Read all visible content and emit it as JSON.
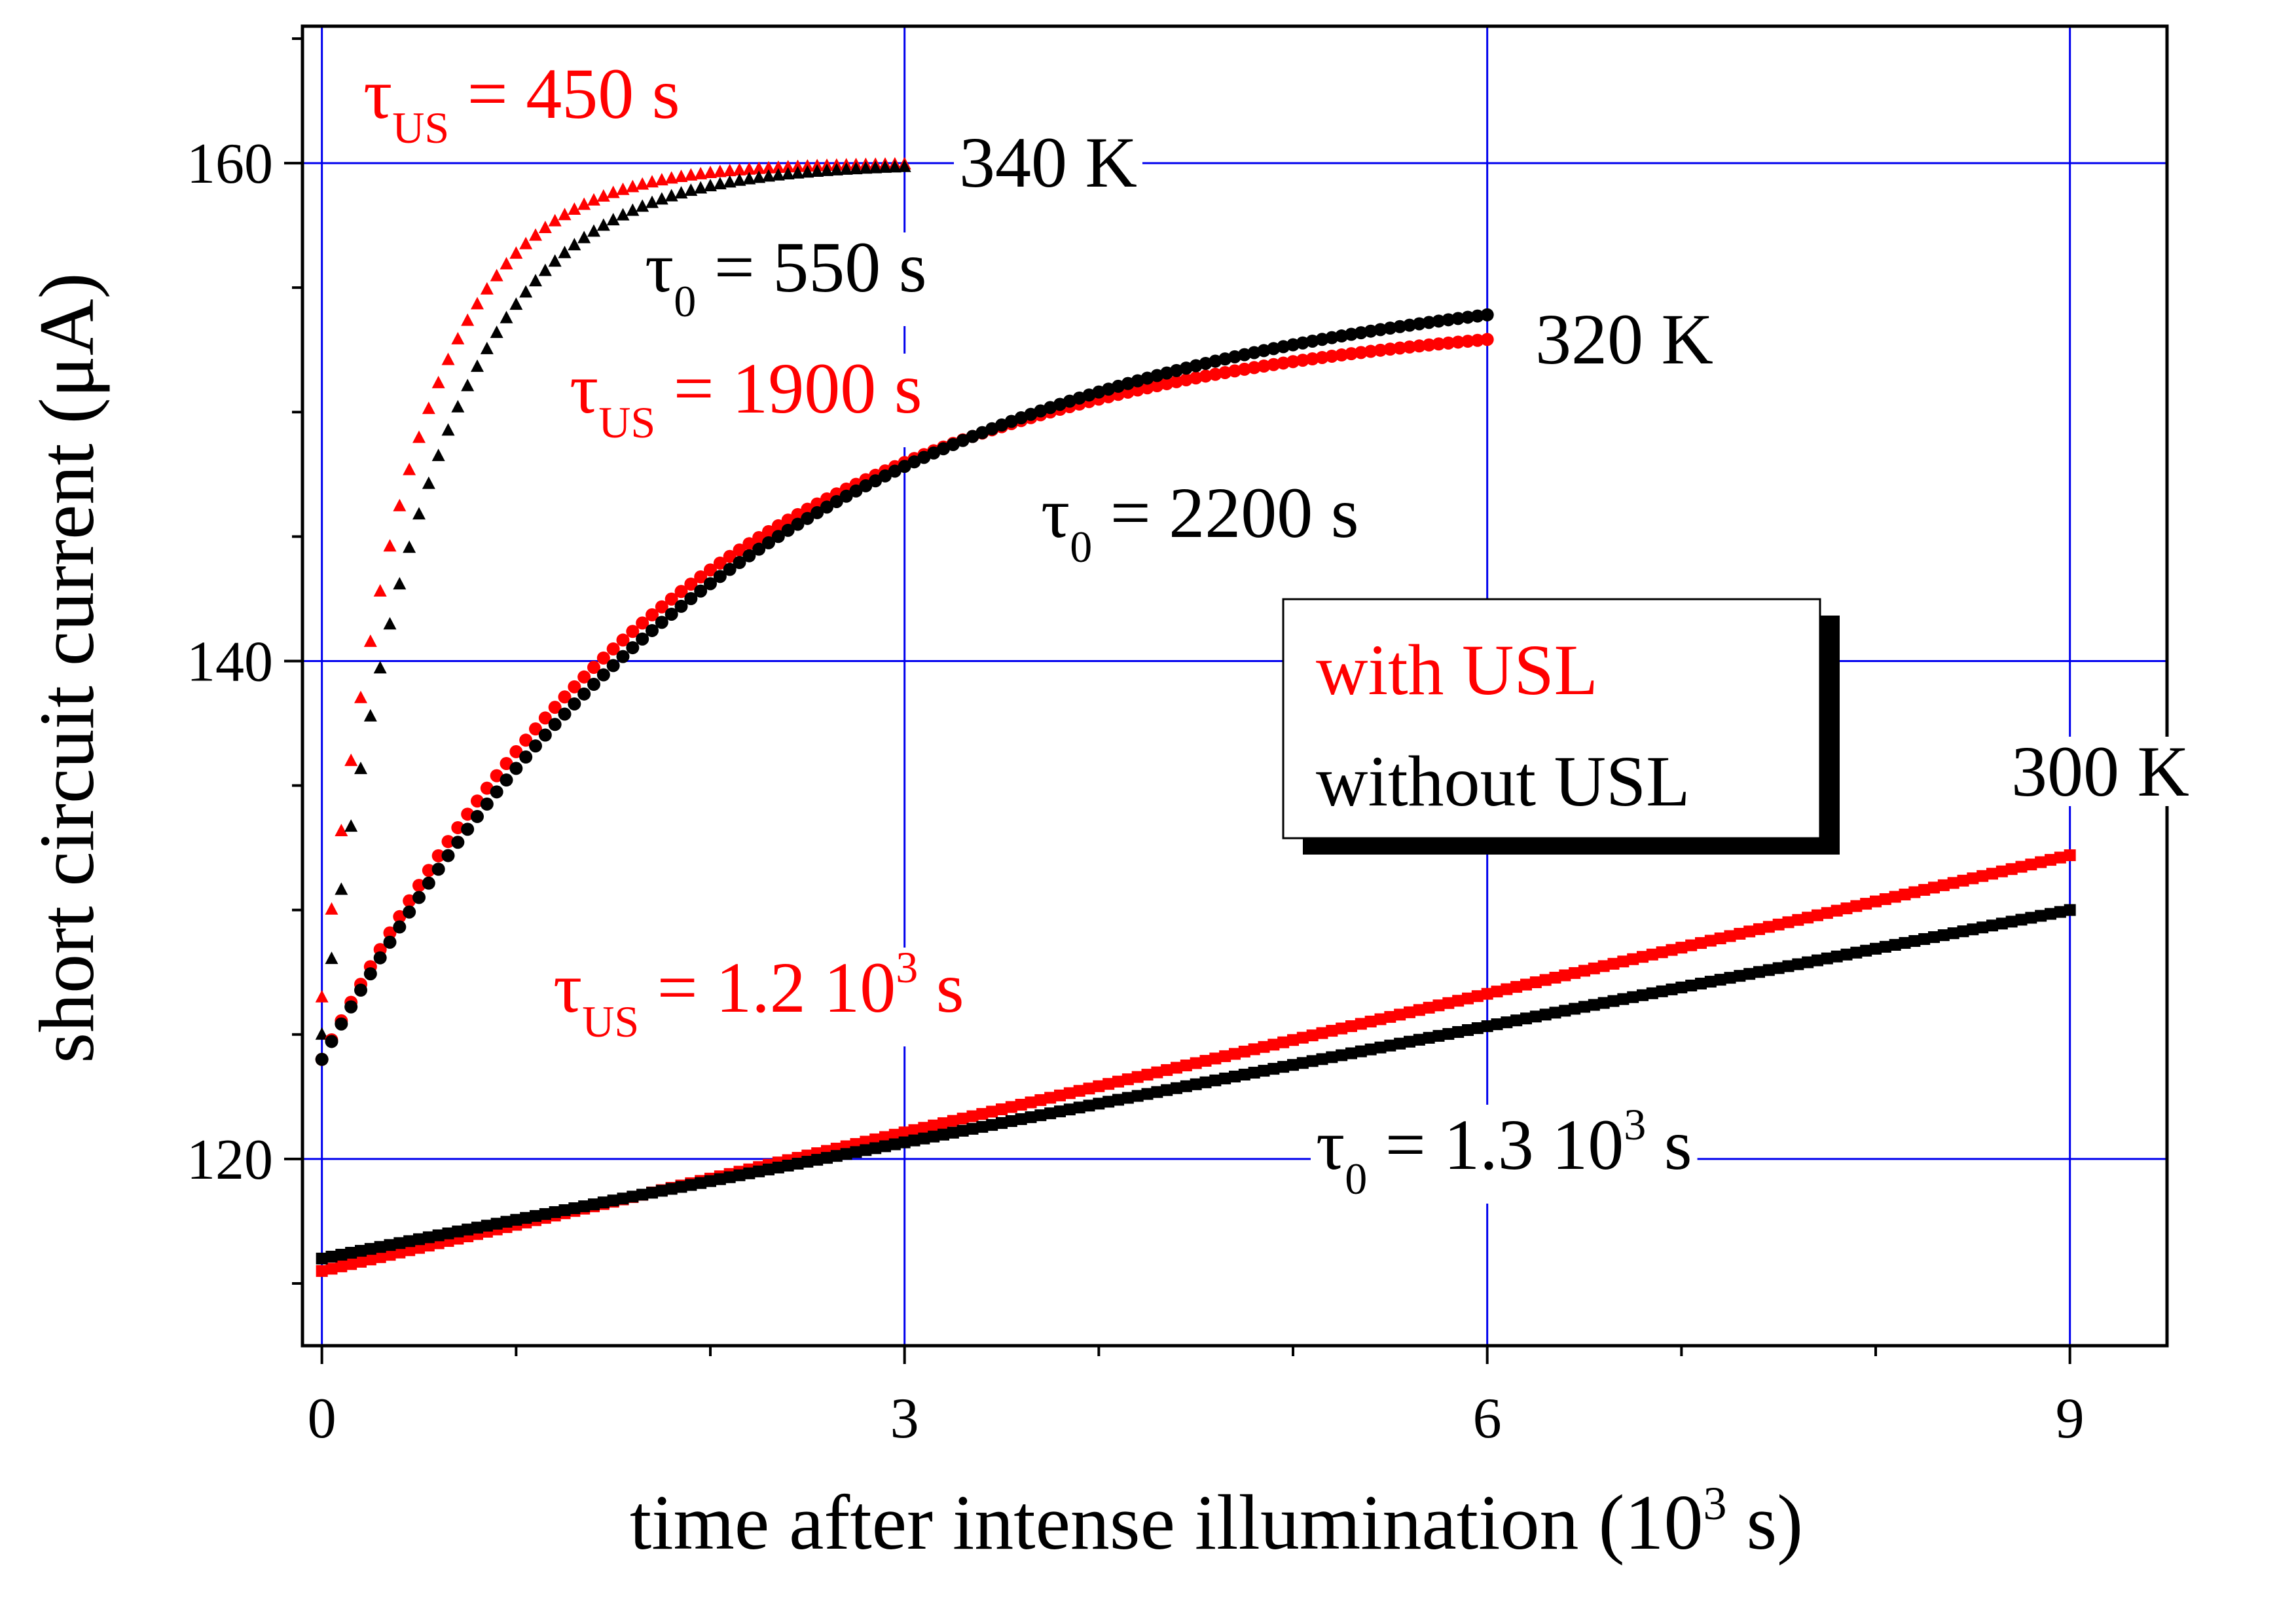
{
  "chart_data": {
    "type": "scatter",
    "title": "",
    "xlabel": "time after intense illumination (10³ s)",
    "ylabel": "short circuit current (μA)",
    "xlim": [
      -0.1,
      9.5
    ],
    "ylim": [
      112.5,
      165.5
    ],
    "x_ticks": [
      0,
      3,
      6,
      9
    ],
    "x_tick_labels": [
      "0",
      "3",
      "6",
      "9"
    ],
    "y_ticks": [
      120,
      140,
      160
    ],
    "y_tick_labels": [
      "120",
      "140",
      "160"
    ],
    "grid": true,
    "legend": {
      "position": "center-right",
      "entries": [
        {
          "label": "with USL",
          "color": "#ff0000"
        },
        {
          "label": "without USL",
          "color": "#000000"
        }
      ]
    },
    "colors": {
      "with_usl": "#ff0000",
      "without_usl": "#000000",
      "grid": "#0000ee"
    },
    "series": [
      {
        "group": "340 K",
        "usl": "with",
        "color": "#ff0000",
        "marker": "triangle",
        "x_start": 0.0,
        "x_end": 3.0,
        "y0": 126.5,
        "y_inf": 160.0,
        "tau": 0.45,
        "n_points": 60
      },
      {
        "group": "340 K",
        "usl": "without",
        "color": "#000000",
        "marker": "triangle",
        "x_start": 0.0,
        "x_end": 3.0,
        "y0": 125.0,
        "y_inf": 160.0,
        "tau": 0.55,
        "n_points": 60
      },
      {
        "group": "320 K",
        "usl": "with",
        "color": "#ff0000",
        "marker": "circle",
        "x_start": 0.0,
        "x_end": 6.0,
        "y0": 124.0,
        "y_inf": 154.2,
        "tau": 1.9,
        "n_points": 120
      },
      {
        "group": "320 K",
        "usl": "without",
        "color": "#000000",
        "marker": "circle",
        "x_start": 0.0,
        "x_end": 6.0,
        "y0": 124.0,
        "y_inf": 156.0,
        "tau": 2.2,
        "n_points": 120
      },
      {
        "group": "300 K",
        "usl": "with",
        "color": "#ff0000",
        "marker": "square",
        "x_start": 0.0,
        "x_end": 9.0,
        "y0": 115.5,
        "y_end": 132.2,
        "n_points": 180
      },
      {
        "group": "300 K",
        "usl": "without",
        "color": "#000000",
        "marker": "square",
        "x_start": 0.0,
        "x_end": 9.0,
        "y0": 116.0,
        "y_end": 130.0,
        "n_points": 180
      }
    ],
    "annotations": {
      "t340": "340 K",
      "t320": "320 K",
      "t300": "300 K",
      "tau_us_450": {
        "sym": "τ",
        "sub": "US",
        "rest": " = 450 s"
      },
      "tau0_550": {
        "sym": "τ",
        "sub": "0",
        "rest": " = 550 s"
      },
      "tau_us_1900": {
        "sym": "τ",
        "sub": "US",
        "rest": " = 1900 s"
      },
      "tau0_2200": {
        "sym": "τ",
        "sub": "0",
        "rest": " = 2200 s"
      },
      "tau_us_1_2": {
        "sym": "τ",
        "sub": "US",
        "rest": " = 1.2 10",
        "sup": "3",
        "tail": " s"
      },
      "tau0_1_3": {
        "sym": "τ",
        "sub": "0",
        "rest": " = 1.3 10",
        "sup": "3",
        "tail": " s"
      }
    }
  }
}
